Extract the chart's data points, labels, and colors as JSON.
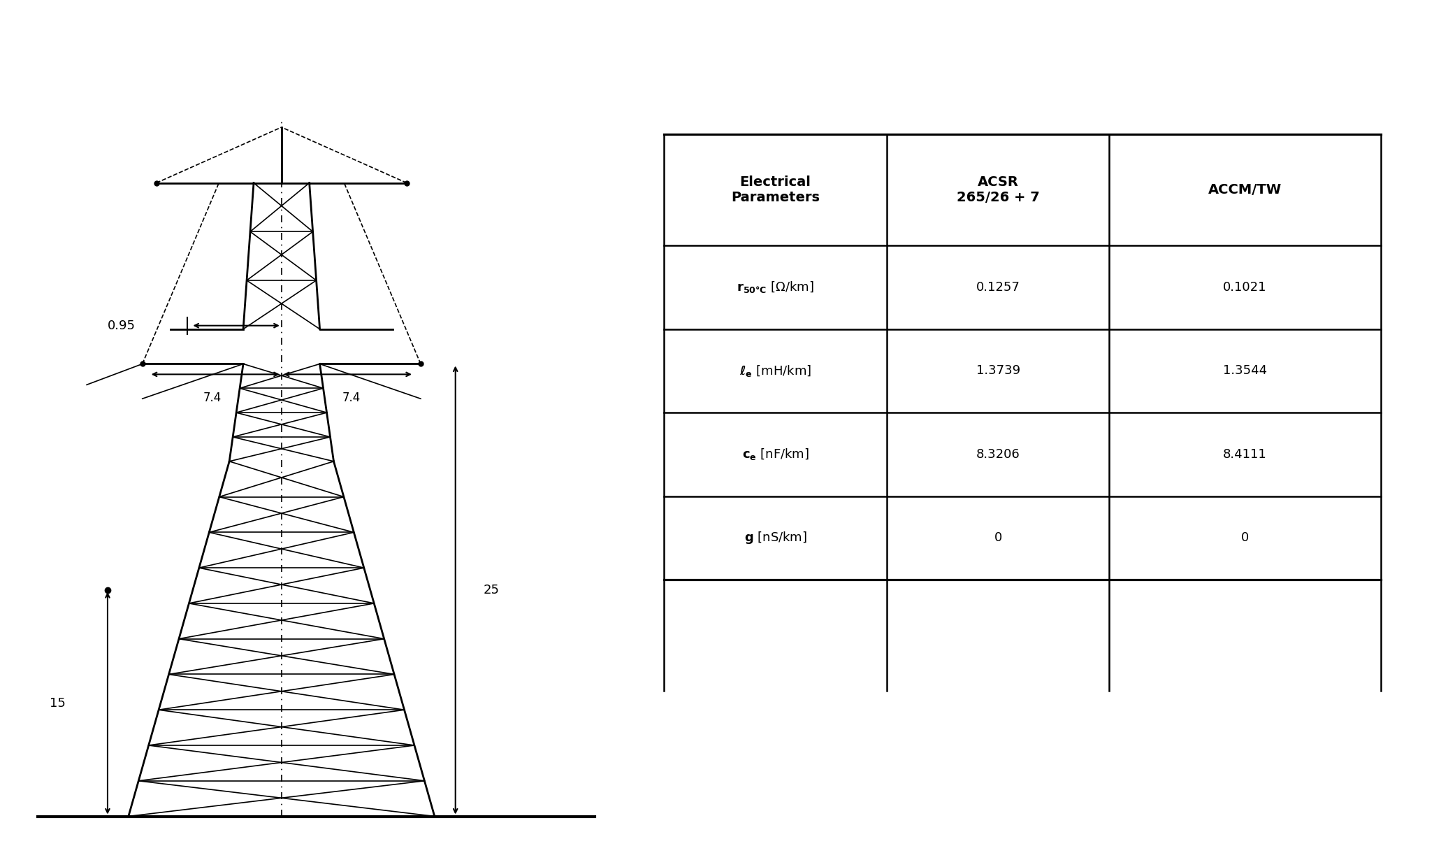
{
  "table_col_labels": [
    "Electrical\nParameters",
    "ACSR\n265/26 + 7",
    "ACCM/TW"
  ],
  "table_rows": [
    [
      "r_{50°C} [Ω/km]",
      "0.1257",
      "0.1021"
    ],
    [
      "ℓ_e [mH/km]",
      "1.3739",
      "1.3544"
    ],
    [
      "c_e [nF/km]",
      "8.3206",
      "8.4111"
    ],
    [
      "g [nS/km]",
      "0",
      "0"
    ]
  ],
  "dim_095": "0.95",
  "dim_74_left": "7.4",
  "dim_74_right": "7.4",
  "dim_25": "25",
  "dim_15": "15",
  "line_color": "#000000",
  "background_color": "#ffffff",
  "table_header_fontsize": 13,
  "table_cell_fontsize": 12
}
